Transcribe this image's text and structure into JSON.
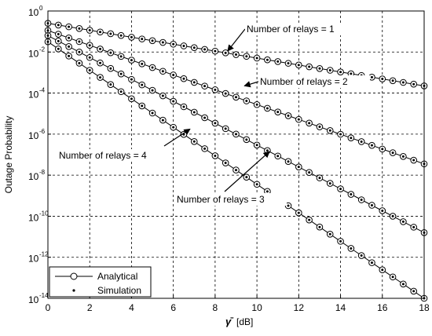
{
  "chart_data": {
    "type": "line",
    "xlabel": "[dB]",
    "xlabel_symbol": "γ̄",
    "ylabel": "Outage Probability",
    "xlim": [
      0,
      18
    ],
    "ylim_log10": [
      -14,
      0
    ],
    "y_scale": "log",
    "grid": true,
    "x_ticks": [
      {
        "value": 0,
        "label": "0"
      },
      {
        "value": 2,
        "label": "2"
      },
      {
        "value": 4,
        "label": "4"
      },
      {
        "value": 6,
        "label": "6"
      },
      {
        "value": 8,
        "label": "8"
      },
      {
        "value": 10,
        "label": "10"
      },
      {
        "value": 12,
        "label": "12"
      },
      {
        "value": 14,
        "label": "14"
      },
      {
        "value": 16,
        "label": "16"
      },
      {
        "value": 18,
        "label": "18"
      }
    ],
    "y_ticks": [
      {
        "value": 0,
        "base": "10",
        "exp": "0"
      },
      {
        "value": -2,
        "base": "10",
        "exp": "-2"
      },
      {
        "value": -4,
        "base": "10",
        "exp": "-4"
      },
      {
        "value": -6,
        "base": "10",
        "exp": "-6"
      },
      {
        "value": -8,
        "base": "10",
        "exp": "-8"
      },
      {
        "value": -10,
        "base": "10",
        "exp": "-10"
      },
      {
        "value": -12,
        "base": "10",
        "exp": "-12"
      },
      {
        "value": -14,
        "base": "10",
        "exp": "-14"
      }
    ],
    "x": [
      0,
      0.5,
      1,
      1.5,
      2,
      2.5,
      3,
      3.5,
      4,
      4.5,
      5,
      5.5,
      6,
      6.5,
      7,
      7.5,
      8,
      8.5,
      9,
      9.5,
      10,
      10.5,
      11,
      11.5,
      12,
      12.5,
      13,
      13.5,
      14,
      14.5,
      15,
      15.5,
      16,
      16.5,
      17,
      17.5,
      18
    ],
    "series": [
      {
        "relays": 1,
        "log10_start": -0.6,
        "log10_end": -3.65,
        "annotation": "Number of relays = 1"
      },
      {
        "relays": 2,
        "log10_start": -0.95,
        "log10_end": -7.45,
        "annotation": "Number of relays = 2"
      },
      {
        "relays": 3,
        "log10_start": -1.2,
        "log10_end": -10.8,
        "annotation": "Number of relays = 3"
      },
      {
        "relays": 4,
        "log10_start": -1.5,
        "log10_end": -14.0,
        "annotation": "Number of relays = 4"
      }
    ],
    "annotations": [
      {
        "text": "Number of relays = 1",
        "arrow_to": {
          "x": 8.6,
          "log10": -1.95
        }
      },
      {
        "text": "Number of relays = 2",
        "arrow_to": {
          "x": 9.4,
          "log10": -3.65
        }
      },
      {
        "text": "Number of relays = 4",
        "arrow_to": {
          "x": 6.8,
          "log10": -5.75
        }
      },
      {
        "text": "Number of relays = 3",
        "arrow_to": {
          "x": 10.6,
          "log10": -6.85
        }
      }
    ],
    "legend": {
      "position": "bottom-left",
      "entries": [
        {
          "label": "Analytical",
          "marker": "open-circle-line"
        },
        {
          "label": "Simulation",
          "marker": "dot"
        }
      ]
    },
    "colors": {
      "line": "#000000",
      "grid": "#000000",
      "background": "#ffffff"
    }
  }
}
